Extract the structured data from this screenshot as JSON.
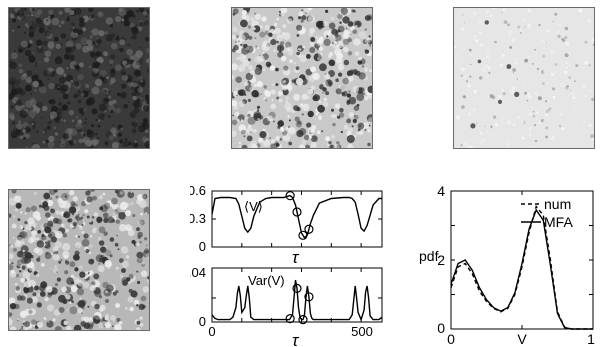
{
  "panels": {
    "top_left_pattern": {
      "tone": "dark",
      "base_color": "#3a3a3a",
      "spot_color": "#1c1c1c",
      "light_color": "#6a6a6a"
    },
    "top_mid_pattern": {
      "tone": "mixed",
      "base_color": "#c9c9c9",
      "spot_color": "#2d2d2d",
      "light_color": "#f0f0f0"
    },
    "top_right_pattern": {
      "tone": "light",
      "base_color": "#e6e6e6",
      "spot_color": "#9a9a9a",
      "light_color": "#f6f6f6"
    },
    "bottom_left_pattern": {
      "tone": "mixed",
      "base_color": "#b8b8b8",
      "spot_color": "#303030",
      "light_color": "#ececec"
    }
  },
  "chart_data": [
    {
      "type": "line",
      "annotation": "⟨V⟩",
      "xlabel": "τ",
      "xlim": [
        0,
        570
      ],
      "ylim": [
        0,
        0.6
      ],
      "xticks": [
        "0",
        "500"
      ],
      "yticks": [
        "0",
        "0.3",
        "0.6"
      ],
      "series": [
        {
          "style": "solid",
          "x": [
            0,
            10,
            30,
            60,
            80,
            90,
            100,
            110,
            120,
            130,
            140,
            160,
            180,
            200,
            220,
            240,
            260,
            262,
            270,
            280,
            290,
            300,
            310,
            320,
            330,
            340,
            360,
            400,
            440,
            460,
            470,
            480,
            490,
            500,
            510,
            520,
            540,
            560,
            570
          ],
          "y": [
            0.35,
            0.52,
            0.53,
            0.53,
            0.52,
            0.46,
            0.33,
            0.2,
            0.16,
            0.2,
            0.33,
            0.48,
            0.52,
            0.53,
            0.53,
            0.53,
            0.55,
            0.55,
            0.53,
            0.45,
            0.3,
            0.15,
            0.1,
            0.13,
            0.25,
            0.34,
            0.47,
            0.52,
            0.53,
            0.53,
            0.52,
            0.48,
            0.35,
            0.2,
            0.17,
            0.23,
            0.45,
            0.52,
            0.52
          ]
        }
      ],
      "markers_x": [
        262,
        285,
        305,
        325
      ]
    },
    {
      "type": "line",
      "annotation": "Var(V)",
      "xlabel": "τ",
      "xlim": [
        0,
        570
      ],
      "ylim": [
        0,
        0.045
      ],
      "xticks": [
        "0",
        "500"
      ],
      "yticks": [
        "0",
        "0.04"
      ],
      "series": [
        {
          "style": "solid",
          "x": [
            0,
            10,
            20,
            40,
            60,
            70,
            80,
            85,
            90,
            95,
            100,
            110,
            115,
            120,
            125,
            130,
            140,
            160,
            200,
            240,
            260,
            270,
            275,
            280,
            285,
            290,
            295,
            300,
            305,
            310,
            315,
            320,
            325,
            330,
            335,
            340,
            350,
            400,
            440,
            460,
            470,
            475,
            480,
            485,
            490,
            500,
            510,
            515,
            520,
            525,
            530,
            540,
            560,
            570
          ],
          "y": [
            0.006,
            0.003,
            0.002,
            0.002,
            0.002,
            0.004,
            0.012,
            0.024,
            0.03,
            0.022,
            0.008,
            0.012,
            0.022,
            0.03,
            0.02,
            0.004,
            0.002,
            0.002,
            0.002,
            0.002,
            0.002,
            0.006,
            0.02,
            0.035,
            0.028,
            0.012,
            0.004,
            0.002,
            0.002,
            0.006,
            0.02,
            0.03,
            0.021,
            0.007,
            0.003,
            0.002,
            0.002,
            0.002,
            0.002,
            0.002,
            0.006,
            0.018,
            0.03,
            0.02,
            0.008,
            0.002,
            0.01,
            0.025,
            0.03,
            0.02,
            0.005,
            0.002,
            0.002,
            0.004
          ]
        }
      ],
      "markers_x": [
        262,
        285,
        305,
        325
      ]
    },
    {
      "type": "line",
      "xlabel": "V",
      "ylabel": "pdf",
      "xlim": [
        0,
        1
      ],
      "ylim": [
        0,
        4
      ],
      "xticks": [
        "0",
        "1"
      ],
      "yticks": [
        "0",
        "2",
        "4"
      ],
      "legend": "top-right",
      "series": [
        {
          "name": "num",
          "style": "dashed",
          "x": [
            0,
            0.05,
            0.1,
            0.15,
            0.2,
            0.25,
            0.3,
            0.35,
            0.4,
            0.45,
            0.5,
            0.55,
            0.6,
            0.65,
            0.7,
            0.75,
            0.8,
            0.85,
            0.9,
            0.95,
            1.0
          ],
          "y": [
            1.2,
            1.8,
            1.9,
            1.6,
            1.1,
            0.8,
            0.6,
            0.5,
            0.6,
            1.0,
            1.8,
            2.8,
            3.55,
            3.3,
            2.0,
            0.5,
            0.05,
            0.0,
            0.0,
            0.0,
            0.0
          ]
        },
        {
          "name": "MFA",
          "style": "solid",
          "x": [
            0,
            0.05,
            0.1,
            0.15,
            0.2,
            0.25,
            0.3,
            0.35,
            0.4,
            0.45,
            0.5,
            0.55,
            0.6,
            0.65,
            0.7,
            0.75,
            0.8,
            0.85,
            0.9,
            0.95,
            1.0
          ],
          "y": [
            1.3,
            1.9,
            2.0,
            1.7,
            1.2,
            0.85,
            0.62,
            0.52,
            0.62,
            1.05,
            1.9,
            2.9,
            3.45,
            3.15,
            1.85,
            0.45,
            0.04,
            0.0,
            0.0,
            0.0,
            0.0
          ]
        }
      ]
    }
  ]
}
